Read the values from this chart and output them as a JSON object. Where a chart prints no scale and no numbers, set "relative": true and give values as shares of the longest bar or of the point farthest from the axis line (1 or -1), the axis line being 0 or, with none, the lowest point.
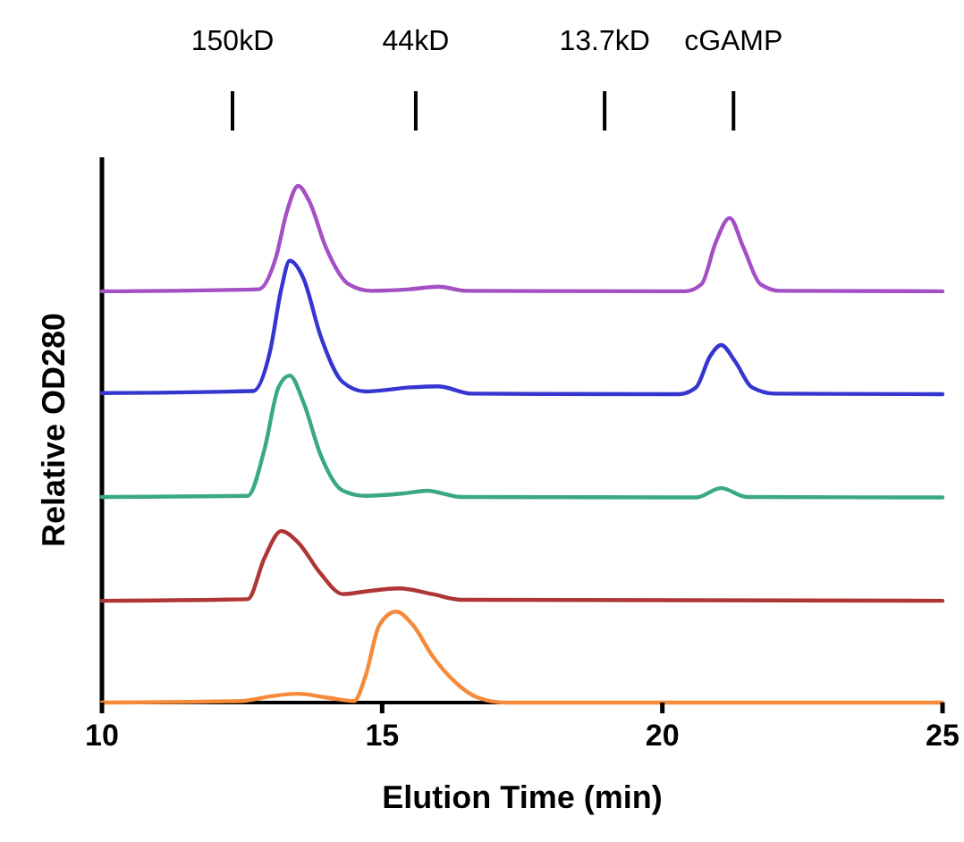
{
  "chart_data": {
    "type": "line",
    "relative": true,
    "xlabel": "Elution Time (min)",
    "ylabel": "Relative OD280",
    "xlim": [
      10,
      25
    ],
    "xticks": [
      10,
      15,
      20,
      25
    ],
    "line_style": "solid",
    "ref_lines": [
      {
        "axis": "x",
        "value": 12.33,
        "label": "150kD"
      },
      {
        "axis": "x",
        "value": 15.6,
        "label": "44kD"
      },
      {
        "axis": "x",
        "value": 18.97,
        "label": "13.7kD"
      },
      {
        "axis": "x",
        "value": 21.27,
        "label": "cGAMP"
      }
    ],
    "series": [
      {
        "color": "#a44fc4",
        "x": [
          10,
          12.8,
          13.1,
          13.3,
          13.5,
          13.7,
          14.0,
          14.4,
          14.8,
          15.5,
          16.0,
          16.5,
          20.4,
          20.7,
          20.95,
          21.2,
          21.45,
          21.75,
          22.1,
          25
        ],
        "values": [
          0.796,
          0.8,
          0.86,
          0.95,
          1.0,
          0.97,
          0.88,
          0.81,
          0.797,
          0.8,
          0.805,
          0.797,
          0.796,
          0.81,
          0.89,
          0.938,
          0.88,
          0.81,
          0.797,
          0.796
        ]
      },
      {
        "color": "#3535d0",
        "x": [
          10,
          12.7,
          13.0,
          13.2,
          13.35,
          13.6,
          13.9,
          14.3,
          14.7,
          15.5,
          16.0,
          16.6,
          20.3,
          20.6,
          20.85,
          21.05,
          21.3,
          21.6,
          22.0,
          25
        ],
        "values": [
          0.599,
          0.603,
          0.68,
          0.8,
          0.855,
          0.82,
          0.71,
          0.62,
          0.602,
          0.61,
          0.612,
          0.598,
          0.597,
          0.61,
          0.67,
          0.692,
          0.66,
          0.61,
          0.598,
          0.597
        ]
      },
      {
        "color": "#3aa886",
        "x": [
          10,
          12.6,
          12.9,
          13.15,
          13.35,
          13.6,
          13.9,
          14.3,
          14.7,
          15.4,
          15.8,
          16.4,
          20.6,
          21.05,
          21.5,
          25
        ],
        "values": [
          0.398,
          0.4,
          0.49,
          0.61,
          0.633,
          0.58,
          0.48,
          0.41,
          0.4,
          0.405,
          0.41,
          0.398,
          0.397,
          0.415,
          0.398,
          0.397
        ]
      },
      {
        "color": "#b03535",
        "x": [
          10,
          12.6,
          12.9,
          13.2,
          13.5,
          13.9,
          14.3,
          14.7,
          15.3,
          15.9,
          16.4,
          25
        ],
        "values": [
          0.197,
          0.2,
          0.28,
          0.332,
          0.31,
          0.25,
          0.21,
          0.215,
          0.221,
          0.21,
          0.199,
          0.197
        ]
      },
      {
        "color": "#f58a3a",
        "x": [
          10,
          12.5,
          13.0,
          13.5,
          14.0,
          14.5,
          14.7,
          14.95,
          15.25,
          15.55,
          15.9,
          16.3,
          16.7,
          17.2,
          25
        ],
        "values": [
          0,
          0.003,
          0.012,
          0.017,
          0.01,
          0.003,
          0.05,
          0.15,
          0.176,
          0.15,
          0.09,
          0.04,
          0.01,
          0,
          0
        ]
      }
    ]
  }
}
